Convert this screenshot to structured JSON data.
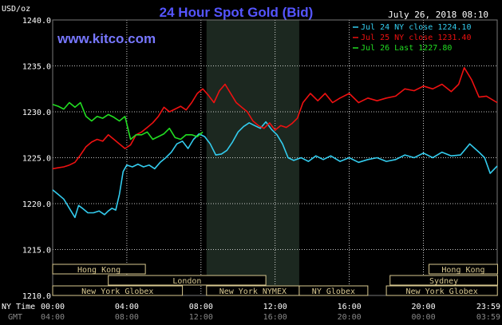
{
  "header": {
    "title": "24 Hour Spot Gold (Bid)",
    "unit": "USD/oz",
    "date": "July 26, 2018 08:10",
    "watermark": "www.kitco.com"
  },
  "timezones": {
    "ny": "NY Time",
    "gmt": "GMT"
  },
  "colors": {
    "background": "#000000",
    "title": "#5555ff",
    "watermark": "#7777ff",
    "grid": "#ffffff",
    "shade": "#1c2820",
    "session_fill": "#000000",
    "session_border": "#d8c890",
    "session_text": "#d8c890",
    "axis_text": "#ffffff",
    "gmt_text": "#888888"
  },
  "sessions": [
    {
      "label": "Hong Kong",
      "start": 0.0,
      "end": 5.0,
      "row": 0
    },
    {
      "label": "London",
      "start": 3.0,
      "end": 11.5,
      "row": 1
    },
    {
      "label": "New York Globex",
      "start": 0.0,
      "end": 7.0,
      "row": 2
    },
    {
      "label": "New York NYMEX",
      "start": 8.3,
      "end": 13.3,
      "row": 2
    },
    {
      "label": "NY Globex",
      "start": 13.3,
      "end": 17.0,
      "row": 2
    },
    {
      "label": "Hong Kong",
      "start": 20.3,
      "end": 24.0,
      "row": 0
    },
    {
      "label": "Sydney",
      "start": 18.2,
      "end": 24.0,
      "row": 1
    },
    {
      "label": "New York Globex",
      "start": 18.0,
      "end": 23.99,
      "row": 2
    }
  ],
  "chart_data": {
    "type": "line",
    "title": "24 Hour Spot Gold (Bid)",
    "ylabel": "USD/oz",
    "xlim": [
      0,
      23.98
    ],
    "ylim": [
      1210,
      1240
    ],
    "yticks": [
      1210,
      1215,
      1220,
      1225,
      1230,
      1235,
      1240
    ],
    "ytick_labels": [
      "1210.0",
      "1215.0",
      "1220.0",
      "1225.0",
      "1230.0",
      "1235.0",
      "1240.0"
    ],
    "xticks": [
      0,
      4,
      8,
      12,
      16,
      20,
      23.98
    ],
    "xtick_labels_ny": [
      "00:00",
      "04:00",
      "08:00",
      "12:00",
      "16:00",
      "20:00",
      "23:59"
    ],
    "xtick_labels_gmt": [
      "04:00",
      "08:00",
      "12:00",
      "16:00",
      "20:00",
      "00:00",
      "03:59"
    ],
    "shaded_region": [
      8.3,
      13.3
    ],
    "grid": true,
    "legend_position": "top-right",
    "series": [
      {
        "name": "Jul 24 NY close 1224.10",
        "color": "#33ccee",
        "x": [
          0,
          0.3,
          0.6,
          0.9,
          1.2,
          1.4,
          1.6,
          1.9,
          2.2,
          2.5,
          2.8,
          3.0,
          3.2,
          3.4,
          3.6,
          3.8,
          4.0,
          4.3,
          4.6,
          4.9,
          5.2,
          5.5,
          5.8,
          6.1,
          6.4,
          6.7,
          7.0,
          7.3,
          7.6,
          7.9,
          8.2,
          8.5,
          8.8,
          9.1,
          9.4,
          9.7,
          10.0,
          10.3,
          10.6,
          10.9,
          11.2,
          11.5,
          11.8,
          12.1,
          12.4,
          12.7,
          13.0,
          13.4,
          13.8,
          14.2,
          14.6,
          15.0,
          15.5,
          16.0,
          16.5,
          17.0,
          17.5,
          18.0,
          18.5,
          19.0,
          19.5,
          20.0,
          20.5,
          21.0,
          21.5,
          22.0,
          22.5,
          23.0,
          23.3,
          23.6,
          23.98
        ],
        "values": [
          1221.5,
          1221.0,
          1220.5,
          1219.5,
          1218.5,
          1219.8,
          1219.5,
          1219.0,
          1219.0,
          1219.2,
          1218.8,
          1219.2,
          1219.5,
          1219.3,
          1221.0,
          1223.5,
          1224.2,
          1224.0,
          1224.3,
          1224.0,
          1224.2,
          1223.8,
          1224.5,
          1225.0,
          1225.6,
          1226.5,
          1226.8,
          1226.0,
          1227.0,
          1227.6,
          1227.3,
          1226.5,
          1225.3,
          1225.4,
          1225.8,
          1226.7,
          1227.8,
          1228.4,
          1228.8,
          1228.5,
          1228.2,
          1228.9,
          1228.1,
          1227.5,
          1226.5,
          1225.0,
          1224.7,
          1225.0,
          1224.6,
          1225.2,
          1224.8,
          1225.2,
          1224.6,
          1225.0,
          1224.5,
          1224.8,
          1225.0,
          1224.6,
          1224.8,
          1225.3,
          1225.0,
          1225.5,
          1225.0,
          1225.6,
          1225.2,
          1225.3,
          1226.5,
          1225.6,
          1225.0,
          1223.3,
          1224.1
        ]
      },
      {
        "name": "Jul 25 NY close 1231.40",
        "color": "#ee1111",
        "x": [
          0,
          0.3,
          0.6,
          0.9,
          1.2,
          1.5,
          1.8,
          2.1,
          2.4,
          2.7,
          3.0,
          3.3,
          3.6,
          3.9,
          4.2,
          4.5,
          4.8,
          5.1,
          5.4,
          5.7,
          6.0,
          6.3,
          6.6,
          6.9,
          7.2,
          7.5,
          7.8,
          8.1,
          8.4,
          8.7,
          9.0,
          9.3,
          9.6,
          9.9,
          10.2,
          10.5,
          10.8,
          11.1,
          11.4,
          11.7,
          12.0,
          12.3,
          12.6,
          12.9,
          13.2,
          13.5,
          13.9,
          14.3,
          14.7,
          15.1,
          15.5,
          16.0,
          16.5,
          17.0,
          17.5,
          18.0,
          18.5,
          19.0,
          19.5,
          20.0,
          20.5,
          21.0,
          21.5,
          21.9,
          22.2,
          22.6,
          23.0,
          23.4,
          23.98
        ],
        "values": [
          1223.8,
          1223.9,
          1224.0,
          1224.2,
          1224.5,
          1225.3,
          1226.2,
          1226.7,
          1227.0,
          1226.8,
          1227.5,
          1227.0,
          1226.5,
          1226.0,
          1226.4,
          1227.5,
          1227.8,
          1228.3,
          1228.8,
          1229.5,
          1230.5,
          1230.0,
          1230.3,
          1230.6,
          1230.2,
          1231.0,
          1232.0,
          1232.5,
          1231.8,
          1231.0,
          1232.3,
          1233.0,
          1232.0,
          1231.0,
          1230.5,
          1230.0,
          1229.0,
          1228.5,
          1228.2,
          1228.8,
          1228.0,
          1228.5,
          1228.3,
          1228.7,
          1229.3,
          1231.0,
          1232.0,
          1231.2,
          1232.0,
          1231.0,
          1231.5,
          1232.0,
          1231.0,
          1231.5,
          1231.2,
          1231.5,
          1231.7,
          1232.5,
          1232.3,
          1232.8,
          1232.5,
          1233.0,
          1232.2,
          1233.0,
          1234.8,
          1233.5,
          1231.6,
          1231.7,
          1231.0
        ]
      },
      {
        "name": "Jul 26 Last 1227.80",
        "color": "#22dd22",
        "x": [
          0,
          0.3,
          0.6,
          0.9,
          1.2,
          1.5,
          1.8,
          2.1,
          2.4,
          2.7,
          3.0,
          3.3,
          3.6,
          3.9,
          4.2,
          4.5,
          4.8,
          5.1,
          5.4,
          5.7,
          6.0,
          6.3,
          6.6,
          6.9,
          7.2,
          7.5,
          7.8,
          8.1
        ],
        "values": [
          1230.8,
          1230.6,
          1230.3,
          1231.0,
          1230.5,
          1231.0,
          1229.5,
          1229.0,
          1229.5,
          1229.3,
          1229.7,
          1229.4,
          1229.0,
          1229.5,
          1227.0,
          1227.5,
          1227.5,
          1227.8,
          1227.0,
          1227.3,
          1227.6,
          1228.2,
          1227.2,
          1227.0,
          1227.5,
          1227.5,
          1227.3,
          1227.8
        ]
      }
    ]
  }
}
